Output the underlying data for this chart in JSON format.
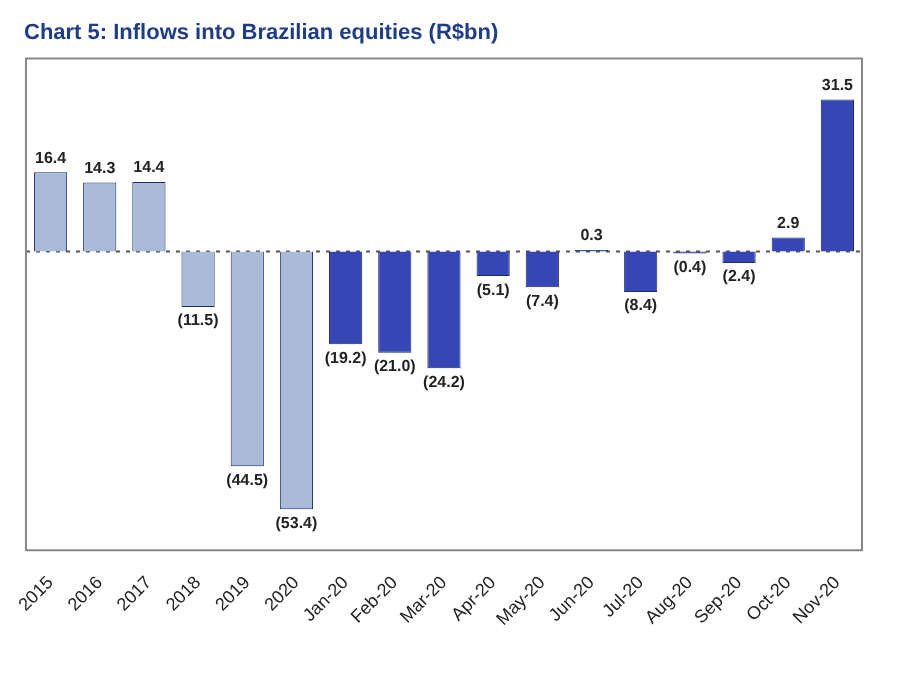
{
  "chart_data": {
    "type": "bar",
    "title": "Chart 5: Inflows into Brazilian equities (R$bn)",
    "categories": [
      "2015",
      "2016",
      "2017",
      "2018",
      "2019",
      "2020",
      "Jan-20",
      "Feb-20",
      "Mar-20",
      "Apr-20",
      "May-20",
      "Jun-20",
      "Jul-20",
      "Aug-20",
      "Sep-20",
      "Oct-20",
      "Nov-20"
    ],
    "values": [
      16.4,
      14.3,
      14.4,
      -11.5,
      -44.5,
      -53.4,
      -19.2,
      -21.0,
      -24.2,
      -5.1,
      -7.4,
      0.3,
      -8.4,
      -0.4,
      -2.4,
      2.9,
      31.5
    ],
    "value_labels": [
      "16.4",
      "14.3",
      "14.4",
      "(11.5)",
      "(44.5)",
      "(53.4)",
      "(19.2)",
      "(21.0)",
      "(24.2)",
      "(5.1)",
      "(7.4)",
      "0.3",
      "(8.4)",
      "(0.4)",
      "(2.4)",
      "2.9",
      "31.5"
    ],
    "colors": [
      "#a9bbd8",
      "#a9bbd8",
      "#a9bbd8",
      "#a9bbd8",
      "#a9bbd8",
      "#a9bbd8",
      "#3646b4",
      "#3646b4",
      "#3646b4",
      "#3646b4",
      "#3646b4",
      "#3646b4",
      "#3646b4",
      "#3646b4",
      "#3646b4",
      "#3646b4",
      "#3646b4"
    ],
    "ref_lines": [
      {
        "axis": "y",
        "value": 0,
        "line_style": "dotted",
        "color": "#555555"
      }
    ],
    "grid": false,
    "legend": false
  }
}
